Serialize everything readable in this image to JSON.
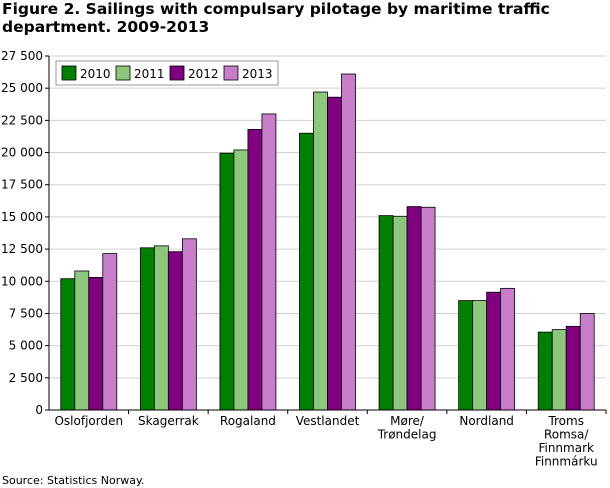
{
  "chart_data": {
    "type": "bar",
    "title": "Figure 2. Sailings with compulsary pilotage by maritime traffic department. 2009-2013",
    "source": "Source: Statistics Norway.",
    "categories": [
      [
        "Oslofjorden"
      ],
      [
        "Skagerrak"
      ],
      [
        "Rogaland"
      ],
      [
        "Vestlandet"
      ],
      [
        "Møre/",
        "Trøndelag"
      ],
      [
        "Nordland"
      ],
      [
        "Troms",
        "Romsa/",
        "Finnmark",
        "Finnmárku"
      ]
    ],
    "series": [
      {
        "name": "2010",
        "color": "#008000",
        "values": [
          10200,
          12600,
          19950,
          21500,
          15100,
          8500,
          6050
        ]
      },
      {
        "name": "2011",
        "color": "#8dc77b",
        "values": [
          10800,
          12750,
          20200,
          24700,
          15050,
          8500,
          6250
        ]
      },
      {
        "name": "2012",
        "color": "#800080",
        "values": [
          10300,
          12300,
          21800,
          24300,
          15800,
          9150,
          6500
        ]
      },
      {
        "name": "2013",
        "color": "#c77dca",
        "values": [
          12150,
          13300,
          23000,
          26100,
          15750,
          9450,
          7500
        ]
      }
    ],
    "ylim": [
      0,
      27500
    ],
    "yticks": [
      "0",
      "2 500",
      "5 000",
      "7 500",
      "10 000",
      "12 500",
      "15 000",
      "17 500",
      "20 000",
      "22 500",
      "25 000",
      "27 500"
    ],
    "ytick_values": [
      0,
      2500,
      5000,
      7500,
      10000,
      12500,
      15000,
      17500,
      20000,
      22500,
      25000,
      27500
    ],
    "grid": true,
    "legend": "top-left"
  }
}
